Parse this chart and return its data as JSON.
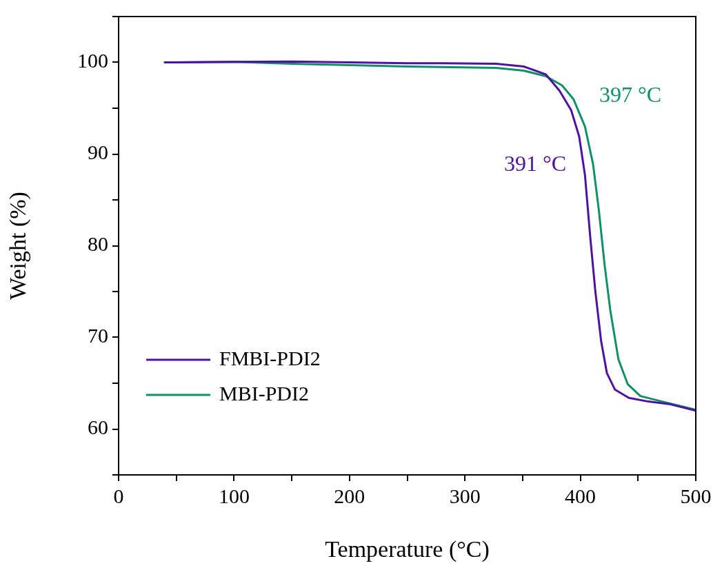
{
  "chart_data": {
    "type": "line",
    "xlabel": "Temperature (°C)",
    "ylabel": "Weight (%)",
    "xlim": [
      0,
      500
    ],
    "ylim": [
      55,
      105
    ],
    "xticks": [
      0,
      {
        "value": 50,
        "label": null
      },
      100,
      {
        "value": 150,
        "label": null
      },
      200,
      {
        "value": 250,
        "label": null
      },
      300,
      {
        "value": 350,
        "label": null
      },
      400,
      {
        "value": 450,
        "label": null
      },
      500
    ],
    "yticks": [
      {
        "value": 55,
        "label": null
      },
      60,
      {
        "value": 65,
        "label": null
      },
      70,
      {
        "value": 75,
        "label": null
      },
      80,
      {
        "value": 85,
        "label": null
      },
      90,
      {
        "value": 95,
        "label": null
      },
      100,
      {
        "value": 105,
        "label": null
      }
    ],
    "legend": "bottom left",
    "marker": "none",
    "line_style": "solid",
    "annotations": [
      "391 °C",
      "397 °C"
    ],
    "series": [
      {
        "name": "FMBI-PDI2",
        "color": "#5010a0",
        "x": [
          40,
          100,
          150,
          200,
          250,
          280,
          327,
          351,
          370,
          382,
          392,
          399,
          404,
          408.6,
          413,
          418,
          423,
          430,
          442,
          459,
          478,
          500
        ],
        "values": [
          100.0,
          100.05,
          100.1,
          100.0,
          99.9,
          99.9,
          99.85,
          99.55,
          98.7,
          96.9,
          94.8,
          91.9,
          87.7,
          80.9,
          75.0,
          69.6,
          66.1,
          64.3,
          63.4,
          63.0,
          62.7,
          62.0
        ]
      },
      {
        "name": "MBI-PDI2",
        "color": "#0e9068",
        "x": [
          40,
          100,
          150,
          200,
          250,
          280,
          327,
          351,
          370,
          384,
          394,
          404,
          411,
          416,
          421,
          426,
          433,
          441,
          452,
          471,
          500
        ],
        "values": [
          100.0,
          100.05,
          99.85,
          99.7,
          99.55,
          99.5,
          99.4,
          99.1,
          98.5,
          97.5,
          96.0,
          93.0,
          88.9,
          83.9,
          77.9,
          72.9,
          67.6,
          64.9,
          63.6,
          63.0,
          62.1
        ]
      }
    ]
  }
}
